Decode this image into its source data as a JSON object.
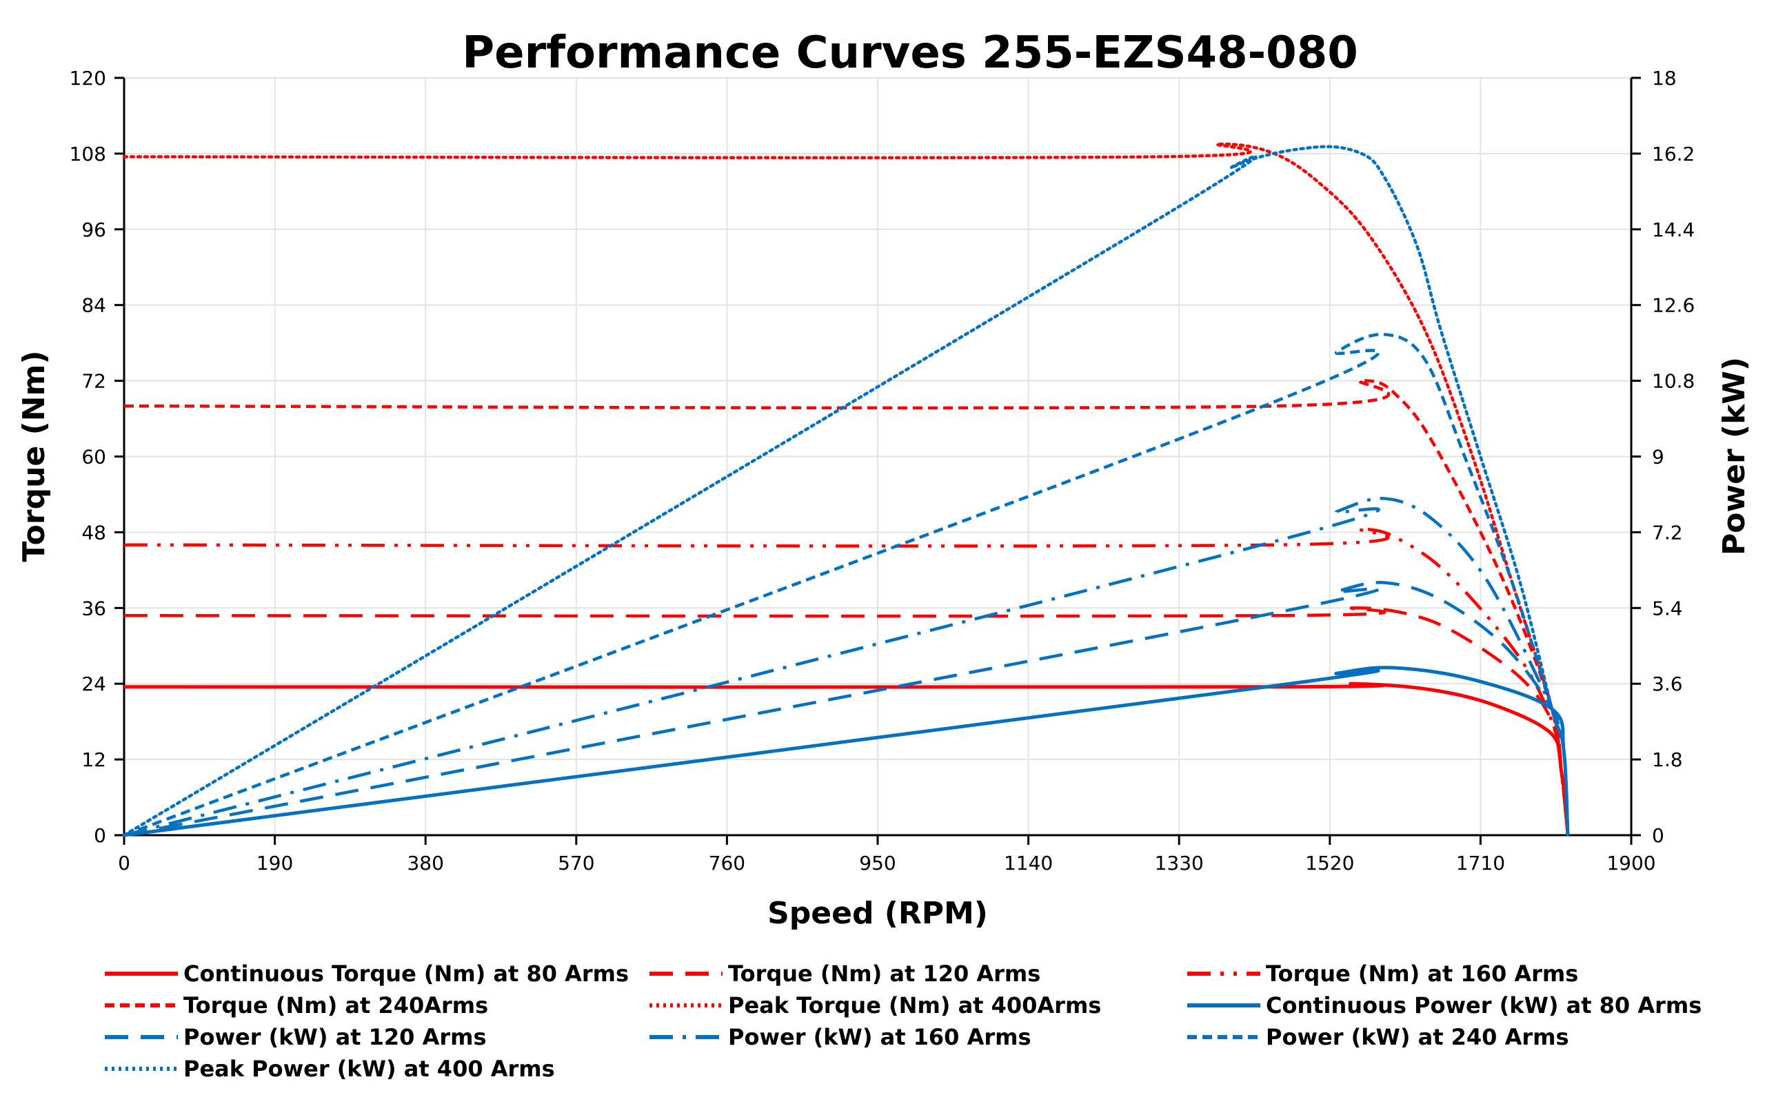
{
  "chart_data": {
    "type": "line",
    "title": "Performance Curves 255-EZS48-080",
    "xlabel": "Speed (RPM)",
    "ylabel": "Torque (Nm)",
    "y2label": "Power (kW)",
    "xlim": [
      0,
      1900
    ],
    "ylim": [
      0,
      120
    ],
    "y2lim": [
      0,
      18
    ],
    "xticks": [
      0,
      190,
      380,
      570,
      760,
      950,
      1140,
      1330,
      1520,
      1710,
      1900
    ],
    "yticks": [
      0,
      12,
      24,
      36,
      48,
      60,
      72,
      84,
      96,
      108,
      120
    ],
    "y2ticks": [
      "0",
      "1.8",
      "3.6",
      "5.4",
      "7.2",
      "9",
      "10.8",
      "12.6",
      "14.4",
      "16.2",
      "18"
    ],
    "grid": true,
    "legend_position": "bottom",
    "colors": {
      "torque": "#ff0000",
      "power": "#0070c0"
    },
    "series": [
      {
        "name": "Continuous Torque (Nm) at 80 Arms",
        "axis": "left",
        "style": "solid",
        "color": "#ff0000",
        "x": [
          0,
          1450,
          1550,
          1650,
          1730,
          1800,
          1812,
          1818,
          1820
        ],
        "y": [
          23.5,
          23.5,
          24,
          23,
          20.5,
          16,
          10,
          4,
          0
        ]
      },
      {
        "name": "Torque (Nm) at 120 Arms",
        "axis": "left",
        "style": "dash",
        "color": "#ff0000",
        "x": [
          0,
          1450,
          1550,
          1620,
          1680,
          1760,
          1800,
          1812,
          1820
        ],
        "y": [
          34.8,
          34.8,
          36,
          35,
          32,
          25,
          18,
          10,
          0
        ]
      },
      {
        "name": "Torque (Nm) at 160 Arms",
        "axis": "left",
        "style": "dashdotdot",
        "color": "#ff0000",
        "x": [
          0,
          1450,
          1560,
          1620,
          1680,
          1760,
          1800,
          1812,
          1820
        ],
        "y": [
          46,
          46,
          48.5,
          46,
          40,
          28,
          18,
          10,
          0
        ]
      },
      {
        "name": "Torque (Nm) at 240Arms",
        "axis": "left",
        "style": "shortdash",
        "color": "#ff0000",
        "x": [
          0,
          1450,
          1560,
          1610,
          1660,
          1740,
          1800,
          1812,
          1820
        ],
        "y": [
          68,
          68,
          72,
          69,
          60,
          40,
          20,
          10,
          0
        ]
      },
      {
        "name": "Peak Torque (Nm) at 400Arms",
        "axis": "left",
        "style": "dot",
        "color": "#ff0000",
        "x": [
          0,
          1300,
          1380,
          1450,
          1510,
          1570,
          1640,
          1700,
          1750,
          1800,
          1812,
          1820
        ],
        "y": [
          107.5,
          107.5,
          109.5,
          108,
          103,
          95,
          80,
          60,
          40,
          20,
          10,
          0
        ]
      },
      {
        "name": "Continuous Power (kW) at 80 Arms",
        "axis": "right",
        "style": "solid",
        "color": "#0070c0",
        "x": [
          0,
          1450,
          1530,
          1600,
          1700,
          1800,
          1815,
          1820
        ],
        "y": [
          0,
          3.55,
          3.85,
          3.98,
          3.7,
          3.0,
          2.0,
          0
        ]
      },
      {
        "name": "Power (kW) at 120 Arms",
        "axis": "right",
        "style": "dash",
        "color": "#0070c0",
        "x": [
          0,
          1450,
          1530,
          1590,
          1660,
          1740,
          1800,
          1815,
          1820
        ],
        "y": [
          0,
          5.28,
          5.8,
          6.0,
          5.6,
          4.5,
          3.0,
          2.0,
          0
        ]
      },
      {
        "name": "Power (kW) at 160 Arms",
        "axis": "right",
        "style": "dashdot",
        "color": "#0070c0",
        "x": [
          0,
          1450,
          1530,
          1590,
          1650,
          1720,
          1800,
          1815,
          1820
        ],
        "y": [
          0,
          6.98,
          7.7,
          8.0,
          7.5,
          6.0,
          3.0,
          2.0,
          0
        ]
      },
      {
        "name": "Power (kW) at 240 Arms",
        "axis": "right",
        "style": "shortdash",
        "color": "#0070c0",
        "x": [
          0,
          1450,
          1530,
          1590,
          1640,
          1690,
          1750,
          1800,
          1815,
          1820
        ],
        "y": [
          0,
          10.3,
          11.5,
          11.9,
          11.3,
          9.0,
          6.0,
          3.0,
          2.0,
          0
        ]
      },
      {
        "name": "Peak Power (kW) at 400 Arms",
        "axis": "right",
        "style": "dot",
        "color": "#0070c0",
        "x": [
          0,
          1300,
          1400,
          1500,
          1560,
          1590,
          1630,
          1660,
          1710,
          1760,
          1800,
          1815,
          1820
        ],
        "y": [
          0,
          14.6,
          15.9,
          16.35,
          16.2,
          15.6,
          14.0,
          12.0,
          9.0,
          6.0,
          3.0,
          2.0,
          0
        ]
      }
    ]
  }
}
